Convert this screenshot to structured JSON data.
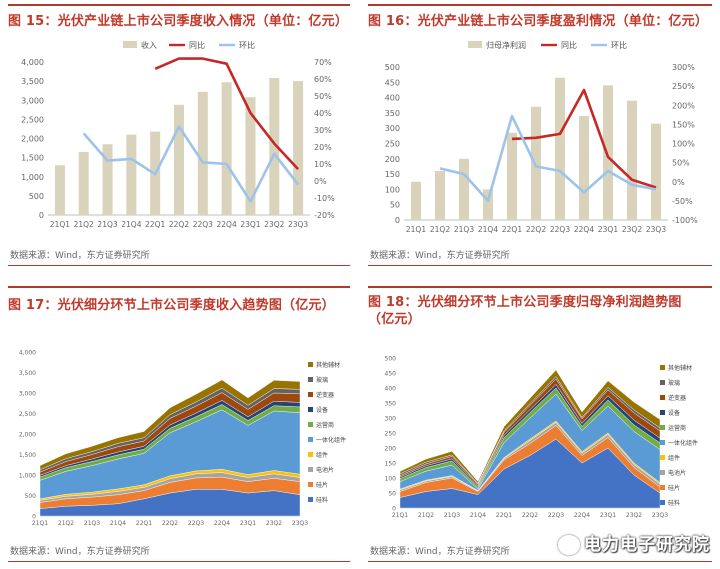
{
  "charts": [
    {
      "id": "c15",
      "title": "图 15：光伏产业链上市公司季度收入情况（单位：亿元）",
      "source": "数据来源：Wind，东方证券研究所",
      "legend": [
        "收入",
        "同比",
        "环比"
      ],
      "chart_data": {
        "type": "bar+line",
        "categories": [
          "21Q1",
          "21Q2",
          "21Q3",
          "21Q4",
          "22Q1",
          "22Q2",
          "22Q3",
          "22Q4",
          "23Q1",
          "23Q2",
          "23Q3"
        ],
        "series": [
          {
            "name": "收入",
            "kind": "bar",
            "axis": "left",
            "values": [
              1300,
              1650,
              1850,
              2100,
              2180,
              2880,
              3220,
              3470,
              3080,
              3580,
              3500
            ]
          },
          {
            "name": "同比",
            "kind": "line",
            "axis": "right",
            "values": [
              null,
              null,
              null,
              null,
              66,
              72,
              72,
              69,
              40,
              22,
              7
            ]
          },
          {
            "name": "环比",
            "kind": "line",
            "axis": "right",
            "values": [
              null,
              28,
              12,
              13,
              4,
              32,
              11,
              10,
              -12,
              16,
              -2
            ]
          }
        ],
        "yleft": {
          "min": 0,
          "max": 4000,
          "step": 500,
          "ticks": [
            "0",
            "500",
            "1,000",
            "1,500",
            "2,000",
            "2,500",
            "3,000",
            "3,500",
            "4,000"
          ]
        },
        "yright": {
          "min": -20,
          "max": 70,
          "step": 10,
          "ticks": [
            "-20%",
            "-10%",
            "0%",
            "10%",
            "20%",
            "30%",
            "40%",
            "50%",
            "60%",
            "70%"
          ]
        }
      }
    },
    {
      "id": "c16",
      "title": "图 16：光伏产业链上市公司季度盈利情况（单位：亿元）",
      "source": "数据来源：Wind，东方证券研究所",
      "legend": [
        "归母净利润",
        "同比",
        "环比"
      ],
      "chart_data": {
        "type": "bar+line",
        "categories": [
          "21Q1",
          "21Q2",
          "21Q3",
          "21Q4",
          "22Q1",
          "22Q2",
          "22Q3",
          "22Q4",
          "23Q1",
          "23Q2",
          "23Q3"
        ],
        "series": [
          {
            "name": "归母净利润",
            "kind": "bar",
            "axis": "left",
            "values": [
              125,
              160,
              200,
              100,
              285,
              370,
              465,
              340,
              440,
              390,
              315
            ]
          },
          {
            "name": "同比",
            "kind": "line",
            "axis": "right",
            "values": [
              null,
              null,
              null,
              null,
              112,
              115,
              125,
              240,
              65,
              5,
              -15
            ]
          },
          {
            "name": "环比",
            "kind": "line",
            "axis": "right",
            "values": [
              null,
              35,
              20,
              -50,
              172,
              40,
              28,
              -28,
              28,
              -8,
              -20
            ]
          }
        ],
        "yleft": {
          "min": 0,
          "max": 500,
          "step": 50,
          "ticks": [
            "0",
            "50",
            "100",
            "150",
            "200",
            "250",
            "300",
            "350",
            "400",
            "450",
            "500"
          ]
        },
        "yright": {
          "min": -100,
          "max": 300,
          "step": 50,
          "ticks": [
            "-100%",
            "-50%",
            "0%",
            "50%",
            "100%",
            "150%",
            "200%",
            "250%",
            "300%"
          ]
        }
      }
    },
    {
      "id": "c17",
      "title": "图 17：光伏细分环节上市公司季度收入趋势图（亿元）",
      "source": "数据来源：Wind，东方证券研究所",
      "chart_data": {
        "type": "area",
        "stacked": true,
        "categories": [
          "21Q1",
          "21Q2",
          "21Q3",
          "21Q4",
          "22Q1",
          "22Q2",
          "22Q3",
          "22Q4",
          "23Q1",
          "23Q2",
          "23Q3"
        ],
        "series": [
          {
            "name": "硅料",
            "values": [
              180,
              240,
              260,
              300,
              420,
              560,
              650,
              650,
              560,
              620,
              520
            ]
          },
          {
            "name": "硅片",
            "values": [
              150,
              180,
              200,
              220,
              200,
              260,
              280,
              300,
              280,
              300,
              320
            ]
          },
          {
            "name": "电池片",
            "values": [
              50,
              60,
              70,
              80,
              80,
              90,
              100,
              110,
              100,
              110,
              100
            ]
          },
          {
            "name": "组件",
            "values": [
              40,
              50,
              50,
              60,
              60,
              70,
              70,
              80,
              70,
              80,
              80
            ]
          },
          {
            "name": "一体化组件",
            "values": [
              450,
              560,
              650,
              730,
              770,
              1050,
              1200,
              1450,
              1200,
              1450,
              1500
            ]
          },
          {
            "name": "运营商",
            "values": [
              80,
              90,
              100,
              100,
              100,
              110,
              120,
              130,
              120,
              130,
              140
            ]
          },
          {
            "name": "设备",
            "values": [
              40,
              50,
              60,
              70,
              70,
              80,
              90,
              100,
              90,
              110,
              110
            ]
          },
          {
            "name": "逆变器",
            "values": [
              80,
              100,
              110,
              130,
              130,
              160,
              170,
              190,
              180,
              200,
              210
            ]
          },
          {
            "name": "玻璃",
            "values": [
              60,
              70,
              70,
              80,
              80,
              90,
              100,
              110,
              100,
              110,
              110
            ]
          },
          {
            "name": "其他辅材",
            "values": [
              100,
              120,
              130,
              140,
              150,
              170,
              190,
              200,
              180,
              200,
              190
            ]
          }
        ],
        "colors": [
          "#4472c4",
          "#ed7d31",
          "#a5a5a5",
          "#ffc000",
          "#5b9bd5",
          "#70ad47",
          "#264478",
          "#9e480e",
          "#636363",
          "#997300"
        ],
        "ylim": [
          0,
          4000
        ],
        "ticks": [
          "0",
          "500",
          "1,000",
          "1,500",
          "2,000",
          "2,500",
          "3,000",
          "3,500",
          "4,000"
        ]
      }
    },
    {
      "id": "c18",
      "title": "图 18：光伏细分环节上市公司季度归母净利润趋势图（亿元）",
      "source": "数据来源：Wind，东方证券研究所",
      "watermark": "电力电子研究院",
      "chart_data": {
        "type": "area",
        "stacked": true,
        "categories": [
          "21Q1",
          "21Q2",
          "21Q3",
          "21Q4",
          "22Q1",
          "22Q2",
          "22Q3",
          "22Q4",
          "23Q1",
          "23Q2",
          "23Q3"
        ],
        "series": [
          {
            "name": "硅料",
            "values": [
              35,
              55,
              65,
              45,
              130,
              175,
              230,
              150,
              200,
              110,
              50
            ]
          },
          {
            "name": "硅片",
            "values": [
              20,
              30,
              35,
              10,
              30,
              40,
              45,
              25,
              35,
              25,
              20
            ]
          },
          {
            "name": "电池片",
            "values": [
              5,
              5,
              5,
              2,
              5,
              10,
              10,
              8,
              10,
              10,
              10
            ]
          },
          {
            "name": "组件",
            "values": [
              3,
              3,
              3,
              1,
              3,
              5,
              5,
              5,
              5,
              5,
              5
            ]
          },
          {
            "name": "一体化组件",
            "values": [
              25,
              30,
              35,
              5,
              50,
              70,
              90,
              70,
              90,
              105,
              110
            ]
          },
          {
            "name": "运营商",
            "values": [
              10,
              12,
              14,
              6,
              16,
              18,
              20,
              14,
              20,
              22,
              22
            ]
          },
          {
            "name": "设备",
            "values": [
              5,
              6,
              7,
              5,
              8,
              10,
              12,
              10,
              14,
              16,
              16
            ]
          },
          {
            "name": "逆变器",
            "values": [
              5,
              6,
              8,
              5,
              10,
              14,
              18,
              15,
              20,
              24,
              24
            ]
          },
          {
            "name": "玻璃",
            "values": [
              6,
              6,
              5,
              3,
              5,
              6,
              8,
              5,
              8,
              10,
              10
            ]
          },
          {
            "name": "其他辅材",
            "values": [
              8,
              10,
              12,
              6,
              14,
              18,
              22,
              18,
              22,
              26,
              28
            ]
          }
        ],
        "colors": [
          "#4472c4",
          "#ed7d31",
          "#a5a5a5",
          "#ffc000",
          "#5b9bd5",
          "#70ad47",
          "#264478",
          "#9e480e",
          "#636363",
          "#997300"
        ],
        "ylim": [
          0,
          500
        ],
        "ticks": [
          "0",
          "50",
          "100",
          "150",
          "200",
          "250",
          "300",
          "350",
          "400",
          "450",
          "500"
        ]
      }
    }
  ]
}
